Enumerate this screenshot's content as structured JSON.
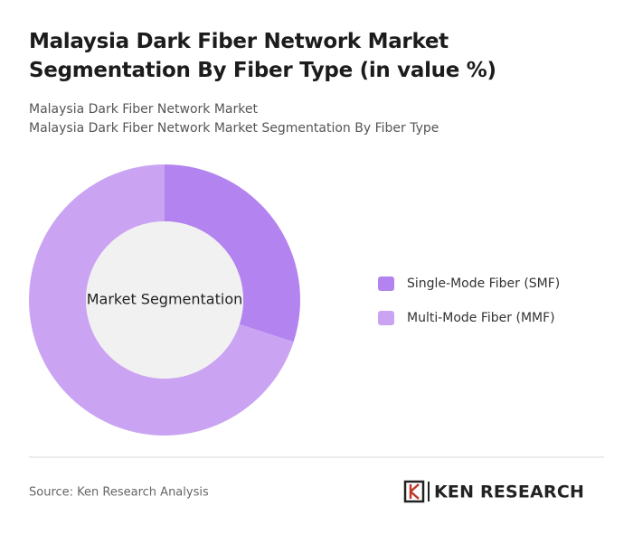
{
  "chart_data": {
    "type": "pie",
    "title": "Malaysia Dark Fiber Network Market Segmentation By Fiber Type (in value %)",
    "subtitle": [
      "Malaysia Dark Fiber Network Market",
      "Malaysia Dark Fiber Network Market Segmentation By Fiber Type"
    ],
    "center_label": "Market Segmentation",
    "categories": [
      "Single-Mode Fiber (SMF)",
      "Multi-Mode Fiber (MMF)"
    ],
    "values": [
      30,
      70
    ],
    "colors": [
      "#b383ef",
      "#caa4f3"
    ]
  },
  "source": "Source: Ken Research Analysis",
  "logo": "KEN RESEARCH"
}
